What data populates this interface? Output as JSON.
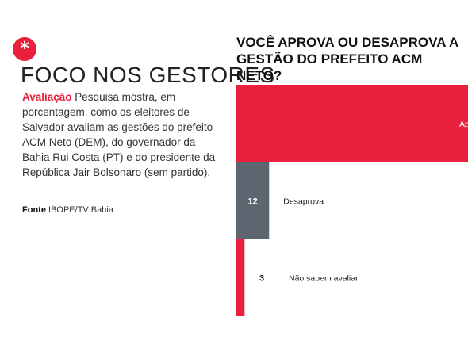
{
  "left": {
    "badge": "*",
    "title": "FOCO NOS GESTORES",
    "lead": "Avaliação",
    "description": " Pesquisa mostra, em porcentagem,  como os eleitores de Salvador avaliam as gestões do prefeito ACM Neto (DEM), do governador da Bahia Rui Costa (PT) e do presidente da República Jair Bolsonaro (sem partido).",
    "source_label": "Fonte",
    "source": " IBOPE/TV Bahia"
  },
  "chart_data": {
    "type": "bar",
    "orientation": "horizontal",
    "title": "VOCÊ APROVA OU DESAPROVA A GESTÃO DO PREFEITO ACM NETO?",
    "categories": [
      "Ap",
      "Desaprova",
      "Não sabem avaliar"
    ],
    "values": [
      85,
      12,
      3
    ],
    "value_labels": [
      "",
      "12",
      "3"
    ],
    "colors": [
      "#e8203c",
      "#5d6670",
      "#e8203c"
    ],
    "xlim": [
      0,
      100
    ],
    "grid": false
  }
}
